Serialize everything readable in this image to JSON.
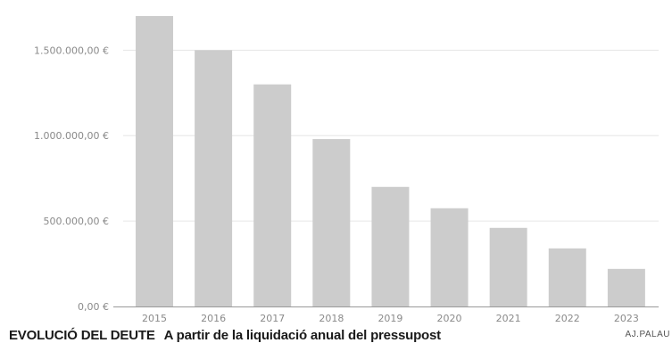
{
  "chart_data": {
    "type": "bar",
    "categories": [
      "2015",
      "2016",
      "2017",
      "2018",
      "2019",
      "2020",
      "2021",
      "2022",
      "2023"
    ],
    "values": [
      1700000,
      1500000,
      1300000,
      980000,
      700000,
      575000,
      460000,
      340000,
      220000
    ],
    "ylim": [
      0,
      1700000
    ],
    "yticks": [
      0,
      500000,
      1000000,
      1500000
    ],
    "ytick_labels": [
      "0,00 €",
      "500.000,00 €",
      "1.000.000,00 €",
      "1.500.000,00 €"
    ],
    "grid": true,
    "bar_color": "#cccccc",
    "grid_color": "#e6e6e6"
  },
  "caption": {
    "label": "EVOLUCIÓ DEL DEUTE",
    "text": "A partir de la liquidació anual del pressupost"
  },
  "credit": "AJ.PALAU"
}
